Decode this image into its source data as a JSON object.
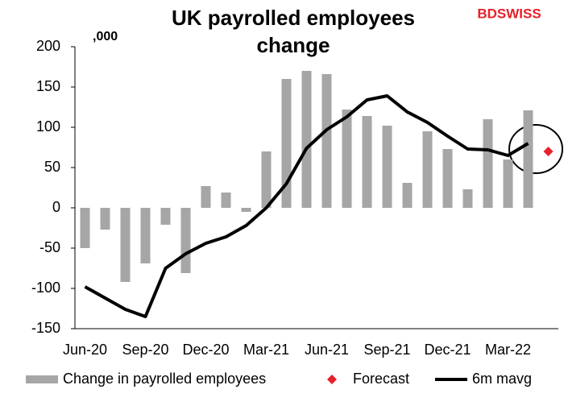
{
  "chart_data": {
    "type": "bar",
    "title": "UK payrolled employees change",
    "unit_note": ",000",
    "brand": "BDSWISS",
    "categories": [
      "Jun-20",
      null,
      null,
      "Sep-20",
      null,
      null,
      "Dec-20",
      null,
      null,
      "Mar-21",
      null,
      null,
      "Jun-21",
      null,
      null,
      "Sep-21",
      null,
      null,
      "Dec-21",
      null,
      null,
      "Mar-22",
      null,
      null
    ],
    "series": [
      {
        "name": "Change in payrolled employees",
        "type": "bar",
        "color": "#a6a6a6",
        "values": [
          -50,
          -27,
          -92,
          -69,
          -21,
          -81,
          27,
          19,
          -5,
          70,
          160,
          170,
          166,
          122,
          114,
          102,
          31,
          95,
          73,
          23,
          110,
          60,
          121,
          null
        ]
      },
      {
        "name": "Forecast",
        "type": "point",
        "color": "#e8202a",
        "values": [
          null,
          null,
          null,
          null,
          null,
          null,
          null,
          null,
          null,
          null,
          null,
          null,
          null,
          null,
          null,
          null,
          null,
          null,
          null,
          null,
          null,
          null,
          null,
          70
        ]
      },
      {
        "name": "6m mavg",
        "type": "line",
        "color": "#000000",
        "values": [
          -98,
          -112,
          -126,
          -135,
          -75,
          -57,
          -44,
          -36,
          -22,
          0,
          30,
          74,
          97,
          113,
          134,
          139,
          119,
          106,
          89,
          73,
          72,
          65,
          80,
          null
        ]
      }
    ],
    "ylim": [
      -150,
      200
    ],
    "yticks": [
      -150,
      -100,
      -50,
      0,
      50,
      100,
      150,
      200
    ]
  }
}
